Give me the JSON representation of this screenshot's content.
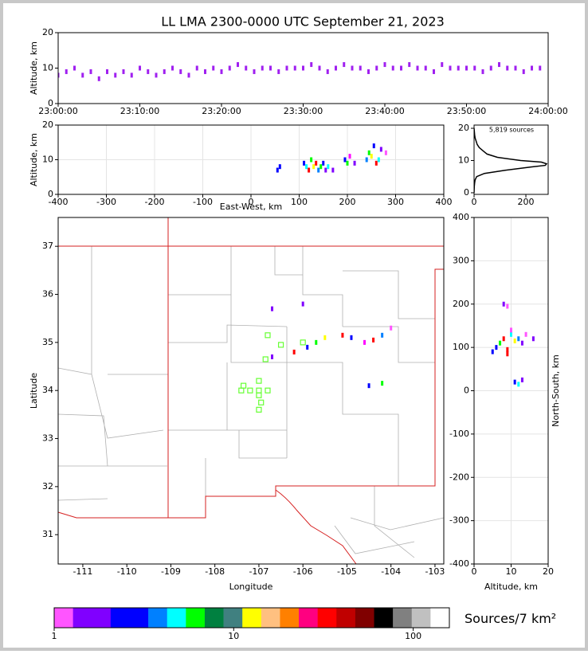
{
  "chart_data": [
    {
      "type": "scatter",
      "title": "LL LMA 2300-0000 UTC September 21, 2023",
      "y_label": "Altitude, km",
      "xlim": [
        0,
        60
      ],
      "xticks": [
        {
          "value": 0,
          "label": "23:00:00"
        },
        {
          "value": 10,
          "label": "23:10:00"
        },
        {
          "value": 20,
          "label": "23:20:00"
        },
        {
          "value": 30,
          "label": "23:30:00"
        },
        {
          "value": 40,
          "label": "23:40:00"
        },
        {
          "value": 50,
          "label": "23:50:00"
        },
        {
          "value": 60,
          "label": "24:00:00"
        }
      ],
      "ylim": [
        0,
        20
      ],
      "yticks": [
        0,
        10,
        20
      ],
      "color": "#a020f0",
      "x": [
        0,
        1,
        2,
        3,
        4,
        5,
        6,
        7,
        8,
        9,
        10,
        11,
        12,
        13,
        14,
        15,
        16,
        17,
        18,
        19,
        20,
        21,
        22,
        23,
        24,
        25,
        26,
        27,
        28,
        29,
        30,
        31,
        32,
        33,
        34,
        35,
        36,
        37,
        38,
        39,
        40,
        41,
        42,
        43,
        44,
        45,
        46,
        47,
        48,
        49,
        50,
        51,
        52,
        53,
        54,
        55,
        56,
        57,
        58,
        59
      ],
      "y": [
        8,
        9,
        10,
        8,
        9,
        7,
        9,
        8,
        9,
        8,
        10,
        9,
        8,
        9,
        10,
        9,
        8,
        10,
        9,
        10,
        9,
        10,
        11,
        10,
        9,
        10,
        10,
        9,
        10,
        10,
        10,
        11,
        10,
        9,
        10,
        11,
        10,
        10,
        9,
        10,
        11,
        10,
        10,
        11,
        10,
        10,
        9,
        11,
        10,
        10,
        10,
        10,
        9,
        10,
        11,
        10,
        10,
        9,
        10,
        10
      ]
    },
    {
      "type": "scatter",
      "x_label": "East-West, km",
      "y_label": "Altitude, km",
      "grid": true,
      "xlim": [
        -400,
        400
      ],
      "xticks": [
        -400,
        -300,
        -200,
        -100,
        0,
        100,
        200,
        300,
        400
      ],
      "ylim": [
        0,
        20
      ],
      "yticks": [
        0,
        10,
        20
      ],
      "x": [
        55,
        60,
        110,
        115,
        120,
        125,
        130,
        135,
        140,
        145,
        150,
        155,
        160,
        170,
        195,
        200,
        205,
        215,
        240,
        245,
        250,
        255,
        260,
        265,
        270,
        280
      ],
      "y": [
        7,
        8,
        9,
        8,
        7,
        10,
        8,
        9,
        7,
        8,
        9,
        7,
        8,
        7,
        10,
        9,
        11,
        9,
        10,
        12,
        11,
        14,
        9,
        10,
        13,
        12
      ],
      "colors": [
        "#0000ff",
        "#0000ff",
        "#0000ff",
        "#00ffff",
        "#ff0000",
        "#00ff00",
        "#ffff00",
        "#ff0000",
        "#0080ff",
        "#00ff00",
        "#0000ff",
        "#8000ff",
        "#00ffff",
        "#8000ff",
        "#0000ff",
        "#00ff00",
        "#ff00ff",
        "#8000ff",
        "#0080ff",
        "#00ff00",
        "#ffff00",
        "#0000ff",
        "#ff0000",
        "#00ffff",
        "#8000ff",
        "#ff55ff"
      ]
    },
    {
      "type": "line",
      "text": "5,819 sources",
      "color": "#000000",
      "xlim": [
        0,
        286
      ],
      "xticks": [
        0,
        200
      ],
      "ylim": [
        -0.5,
        21
      ],
      "yticks": [
        0,
        10,
        20
      ],
      "x": [
        0,
        1,
        2,
        4,
        10,
        40,
        120,
        220,
        275,
        280,
        260,
        180,
        90,
        50,
        35,
        20,
        12,
        8,
        4,
        2,
        0
      ],
      "y": [
        0,
        2,
        3,
        4,
        5,
        6,
        7,
        8,
        8.5,
        9,
        9.5,
        10,
        11,
        12,
        13,
        14,
        15,
        16,
        17,
        18,
        20
      ]
    },
    {
      "type": "scatter",
      "x_label": "Longitude",
      "y_label": "Latitude",
      "xlim": [
        -111.56,
        -102.8
      ],
      "xticks": [
        -111,
        -110,
        -109,
        -108,
        -107,
        -106,
        -105,
        -104,
        -103
      ],
      "ylim": [
        30.39,
        37.6
      ],
      "yticks": [
        31,
        32,
        33,
        34,
        35,
        36,
        37
      ],
      "x": [
        -106.7,
        -106.0,
        -106.2,
        -105.9,
        -105.7,
        -105.5,
        -105.1,
        -104.9,
        -104.6,
        -104.4,
        -104.2,
        -104.0,
        -104.5,
        -104.2,
        -106.7
      ],
      "y": [
        35.7,
        35.8,
        34.8,
        34.9,
        35.0,
        35.1,
        35.15,
        35.1,
        35.0,
        35.05,
        35.15,
        35.3,
        34.1,
        34.15,
        34.7
      ],
      "colors": [
        "#8000ff",
        "#8000ff",
        "#ff0000",
        "#0000ff",
        "#00ff00",
        "#ffff00",
        "#ff0000",
        "#0000ff",
        "#ff00ff",
        "#ff0000",
        "#0080ff",
        "#ff55ff",
        "#0000ff",
        "#00ff00",
        "#8000ff"
      ],
      "stations": {
        "color": "#66ff33",
        "x": [
          -106.8,
          -106.5,
          -106.0,
          -106.85,
          -107.35,
          -107.0,
          -107.2,
          -107.0,
          -106.8,
          -107.4,
          -107.0,
          -106.95,
          -107.0
        ],
        "y": [
          35.15,
          34.95,
          35.0,
          34.65,
          34.1,
          34.2,
          34.0,
          34.0,
          34.0,
          34.0,
          33.9,
          33.75,
          33.6
        ]
      }
    },
    {
      "type": "scatter",
      "x_label": "Altitude, km",
      "y_label": "North-South, km",
      "grid": true,
      "xlim": [
        0,
        20
      ],
      "xticks": [
        0,
        10,
        20
      ],
      "ylim": [
        -400,
        400
      ],
      "yticks": [
        -400,
        -300,
        -200,
        -100,
        0,
        100,
        200,
        300,
        400
      ],
      "x": [
        6,
        7,
        8,
        9,
        10,
        11,
        12,
        13,
        14,
        16,
        8,
        9,
        11,
        12,
        13,
        5,
        9,
        10
      ],
      "y": [
        100,
        110,
        120,
        95,
        130,
        115,
        120,
        110,
        130,
        120,
        200,
        195,
        20,
        15,
        25,
        90,
        85,
        140
      ],
      "colors": [
        "#0000ff",
        "#00ff00",
        "#ff0000",
        "#ff0000",
        "#00ffff",
        "#ffff00",
        "#0080ff",
        "#8000ff",
        "#ff55ff",
        "#8000ff",
        "#8000ff",
        "#ff55ff",
        "#0000ff",
        "#00ffff",
        "#8000ff",
        "#0000ff",
        "#ff0000",
        "#ff55ff"
      ]
    },
    {
      "type": "colorbar",
      "label": "Sources/7 km²",
      "scale": "log",
      "xlim": [
        1,
        159
      ],
      "xticks": [
        1,
        10,
        100
      ],
      "colors": [
        "#ff55ff",
        "#8000ff",
        "#8000ff",
        "#0000ff",
        "#0000ff",
        "#0080ff",
        "#00ffff",
        "#00ff00",
        "#008040",
        "#408080",
        "#ffff00",
        "#ffc080",
        "#ff8000",
        "#ff0080",
        "#ff0000",
        "#c00000",
        "#800000",
        "#000000",
        "#808080",
        "#c0c0c0",
        "#ffffff"
      ]
    }
  ]
}
